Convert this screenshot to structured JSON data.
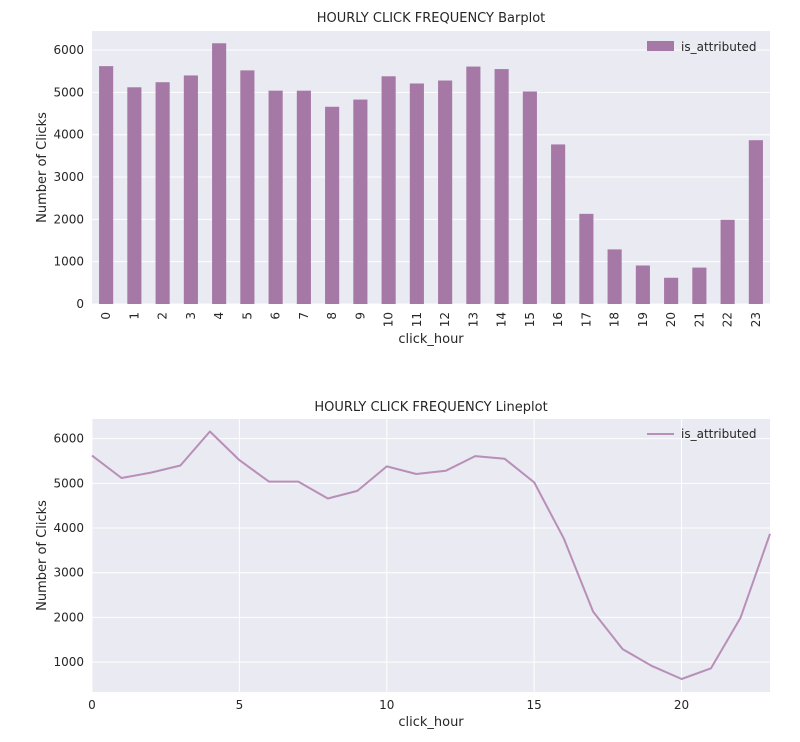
{
  "chart_data": [
    {
      "type": "bar",
      "title": "HOURLY CLICK FREQUENCY Barplot",
      "xlabel": "click_hour",
      "ylabel": "Number of Clicks",
      "categories": [
        "0",
        "1",
        "2",
        "3",
        "4",
        "5",
        "6",
        "7",
        "8",
        "9",
        "10",
        "11",
        "12",
        "13",
        "14",
        "15",
        "16",
        "17",
        "18",
        "19",
        "20",
        "21",
        "22",
        "23"
      ],
      "series": [
        {
          "name": "is_attributed",
          "values": [
            5620,
            5120,
            5240,
            5400,
            6160,
            5520,
            5040,
            5040,
            4660,
            4830,
            5380,
            5210,
            5280,
            5610,
            5550,
            5020,
            3770,
            2130,
            1290,
            910,
            620,
            860,
            1990,
            3870
          ]
        }
      ],
      "ylim": [
        0,
        6450
      ],
      "yticks": [
        0,
        1000,
        2000,
        3000,
        4000,
        5000,
        6000
      ],
      "grid": true,
      "legend": "top-right",
      "color": "#a678a5"
    },
    {
      "type": "line",
      "title": "HOURLY CLICK FREQUENCY Lineplot",
      "xlabel": "click_hour",
      "ylabel": "Number of Clicks",
      "x": [
        0,
        1,
        2,
        3,
        4,
        5,
        6,
        7,
        8,
        9,
        10,
        11,
        12,
        13,
        14,
        15,
        16,
        17,
        18,
        19,
        20,
        21,
        22,
        23
      ],
      "series": [
        {
          "name": "is_attributed",
          "values": [
            5620,
            5120,
            5240,
            5400,
            6160,
            5520,
            5040,
            5040,
            4660,
            4830,
            5380,
            5210,
            5280,
            5610,
            5550,
            5020,
            3770,
            2130,
            1290,
            910,
            620,
            860,
            1990,
            3870
          ]
        }
      ],
      "xlim": [
        0,
        23
      ],
      "ylim": [
        330,
        6440
      ],
      "xticks": [
        0,
        5,
        10,
        15,
        20
      ],
      "yticks": [
        1000,
        2000,
        3000,
        4000,
        5000,
        6000
      ],
      "grid": true,
      "legend": "top-right",
      "color": "#b88fb8"
    }
  ]
}
